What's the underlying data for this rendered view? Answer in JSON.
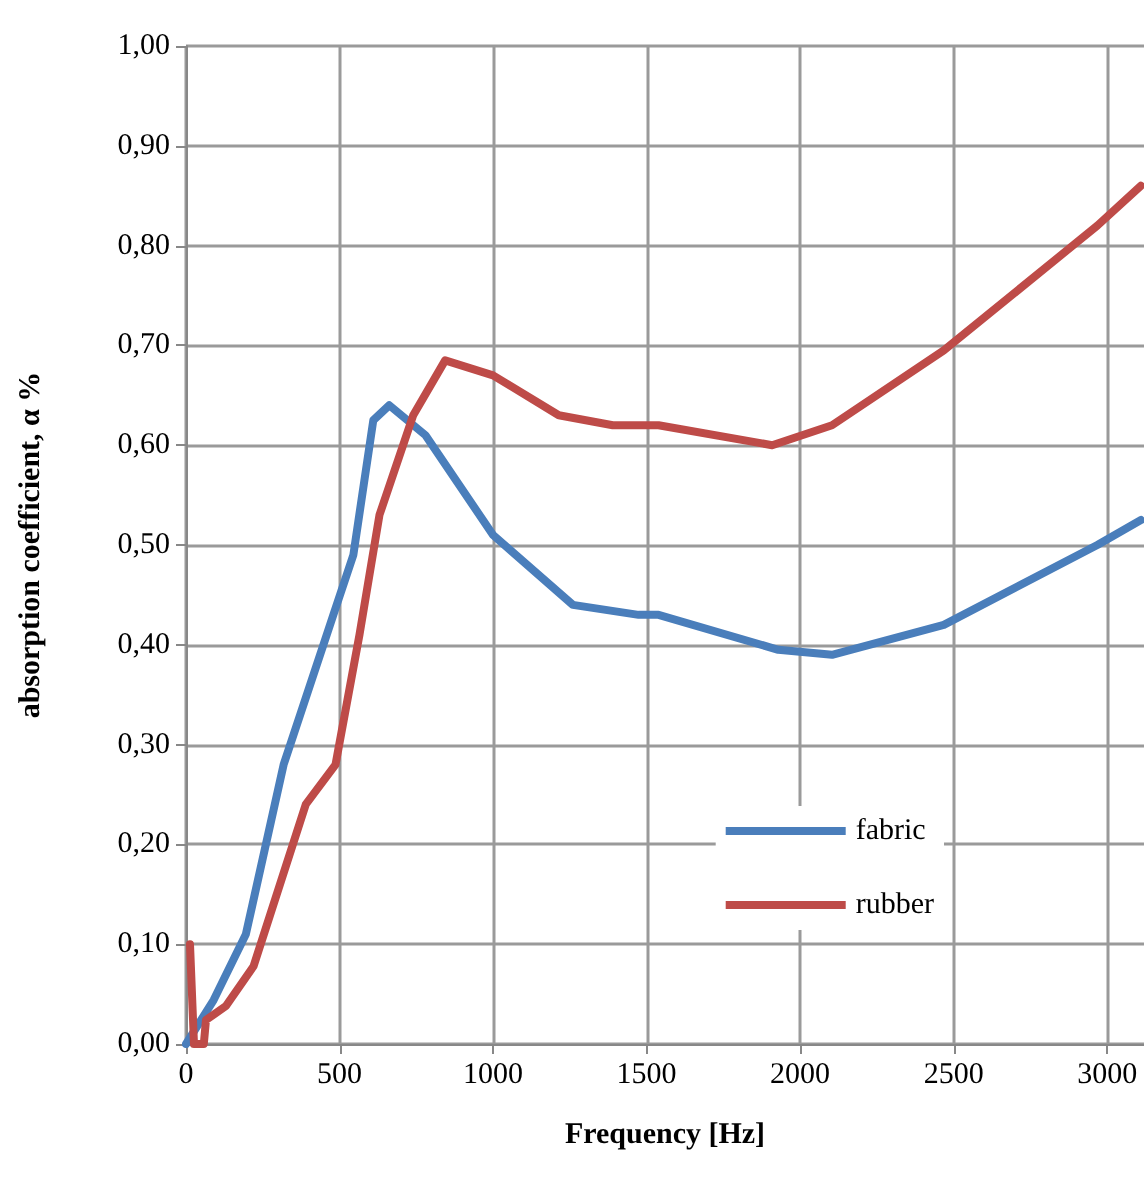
{
  "chart_data": {
    "type": "line",
    "xlabel": "Frequency [Hz]",
    "ylabel": "absorption coefficient, α %",
    "xlim": [
      0,
      3120
    ],
    "xticks": [
      0,
      500,
      1000,
      1500,
      2000,
      2500,
      3000
    ],
    "ylim": [
      0,
      1
    ],
    "yticks": [
      {
        "value": 0,
        "label": "0,00"
      },
      {
        "value": 0.1,
        "label": "0,10"
      },
      {
        "value": 0.2,
        "label": "0,20"
      },
      {
        "value": 0.3,
        "label": "0,30"
      },
      {
        "value": 0.4,
        "label": "0,40"
      },
      {
        "value": 0.5,
        "label": "0,50"
      },
      {
        "value": 0.6,
        "label": "0,60"
      },
      {
        "value": 0.7,
        "label": "0,70"
      },
      {
        "value": 0.8,
        "label": "0,80"
      },
      {
        "value": 0.9,
        "label": "0,90"
      },
      {
        "value": 1,
        "label": "1,00"
      }
    ],
    "grid": true,
    "legend": "bottom right",
    "marker": "none",
    "line_style": "solid",
    "series": [
      {
        "name": "fabric",
        "color": "#4a7ebb",
        "x": [
          0,
          90,
          195,
          318,
          480,
          545,
          610,
          662,
          780,
          1000,
          1260,
          1474,
          1539,
          1929,
          2104,
          2468,
          2968,
          3110
        ],
        "values": [
          0,
          0.044,
          0.11,
          0.28,
          0.43,
          0.49,
          0.625,
          0.64,
          0.61,
          0.51,
          0.44,
          0.43,
          0.43,
          0.395,
          0.39,
          0.42,
          0.5,
          0.525
        ]
      },
      {
        "name": "rubber",
        "color": "#be4b48",
        "x": [
          13,
          26,
          58,
          65,
          130,
          220,
          390,
          487,
          565,
          630,
          740,
          844,
          1000,
          1214,
          1390,
          1539,
          1909,
          2104,
          2468,
          2968,
          3110
        ],
        "values": [
          0.1,
          0,
          0,
          0.024,
          0.038,
          0.078,
          0.24,
          0.28,
          0.41,
          0.53,
          0.63,
          0.685,
          0.67,
          0.63,
          0.62,
          0.62,
          0.6,
          0.62,
          0.695,
          0.82,
          0.86
        ]
      }
    ]
  }
}
